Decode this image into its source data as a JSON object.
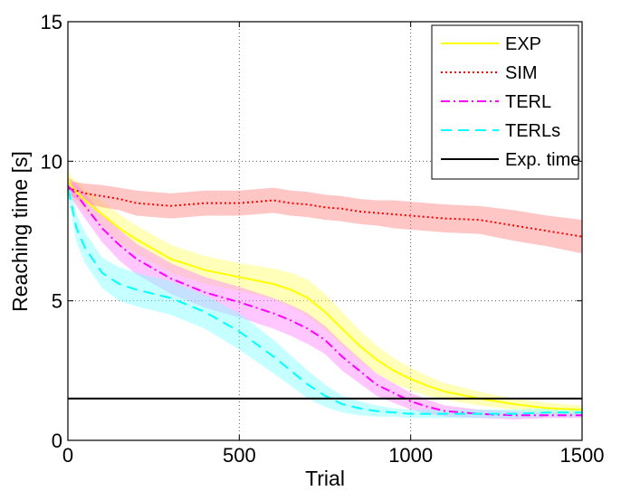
{
  "chart_data": {
    "type": "line",
    "xlabel": "Trial",
    "ylabel": "Reaching time [s]",
    "xlim": [
      0,
      1500
    ],
    "ylim": [
      0,
      15
    ],
    "xticks": [
      "0",
      "500",
      "1000",
      "1500"
    ],
    "yticks": [
      "0",
      "5",
      "10",
      "15"
    ],
    "grid": true,
    "legend_position": "top-right",
    "x": [
      0,
      10,
      25,
      50,
      100,
      150,
      200,
      300,
      400,
      500,
      600,
      650,
      700,
      750,
      800,
      850,
      900,
      950,
      1000,
      1050,
      1100,
      1200,
      1300,
      1400,
      1500
    ],
    "series": [
      {
        "name": "EXP",
        "color": "#ffff00",
        "band_color": "#ffff66",
        "dash": "solid",
        "values": [
          9.4,
          9.1,
          8.9,
          8.6,
          8.1,
          7.6,
          7.2,
          6.5,
          6.1,
          5.85,
          5.6,
          5.4,
          5.1,
          4.6,
          4.0,
          3.4,
          2.9,
          2.5,
          2.2,
          1.95,
          1.75,
          1.5,
          1.3,
          1.15,
          1.1
        ],
        "band": [
          0.3,
          0.35,
          0.4,
          0.4,
          0.45,
          0.5,
          0.5,
          0.5,
          0.5,
          0.5,
          0.55,
          0.6,
          0.65,
          0.65,
          0.6,
          0.55,
          0.5,
          0.45,
          0.4,
          0.35,
          0.3,
          0.25,
          0.2,
          0.2,
          0.15
        ]
      },
      {
        "name": "SIM",
        "color": "#ff0000",
        "band_color": "#ff8080",
        "dash": "dotted",
        "values": [
          9.0,
          9.0,
          8.95,
          8.85,
          8.75,
          8.65,
          8.5,
          8.4,
          8.5,
          8.5,
          8.6,
          8.5,
          8.45,
          8.35,
          8.3,
          8.2,
          8.15,
          8.1,
          8.05,
          8.0,
          7.95,
          7.9,
          7.7,
          7.5,
          7.3
        ],
        "band": [
          0.2,
          0.25,
          0.3,
          0.35,
          0.4,
          0.4,
          0.45,
          0.45,
          0.45,
          0.45,
          0.45,
          0.45,
          0.45,
          0.45,
          0.45,
          0.45,
          0.45,
          0.5,
          0.5,
          0.5,
          0.5,
          0.5,
          0.55,
          0.55,
          0.6
        ]
      },
      {
        "name": "TERL",
        "color": "#ff00ff",
        "band_color": "#ff80ff",
        "dash": "dashdot",
        "values": [
          9.1,
          9.0,
          8.8,
          8.4,
          7.6,
          7.0,
          6.5,
          5.8,
          5.3,
          4.95,
          4.55,
          4.3,
          4.0,
          3.6,
          3.0,
          2.5,
          2.0,
          1.7,
          1.4,
          1.2,
          1.05,
          0.95,
          0.9,
          0.9,
          0.9
        ],
        "band": [
          0.3,
          0.35,
          0.4,
          0.45,
          0.5,
          0.55,
          0.55,
          0.55,
          0.55,
          0.55,
          0.55,
          0.55,
          0.55,
          0.5,
          0.5,
          0.45,
          0.4,
          0.35,
          0.3,
          0.25,
          0.2,
          0.15,
          0.15,
          0.1,
          0.1
        ]
      },
      {
        "name": "TERLs",
        "color": "#00ffff",
        "band_color": "#80ffff",
        "dash": "dashed",
        "values": [
          9.0,
          8.5,
          7.6,
          6.9,
          6.0,
          5.6,
          5.4,
          5.1,
          4.6,
          3.9,
          3.0,
          2.5,
          2.0,
          1.6,
          1.3,
          1.15,
          1.05,
          1.0,
          0.95,
          0.95,
          0.95,
          0.95,
          0.95,
          1.0,
          1.0
        ],
        "band": [
          0.3,
          0.4,
          0.5,
          0.55,
          0.55,
          0.6,
          0.6,
          0.6,
          0.6,
          0.65,
          0.6,
          0.55,
          0.5,
          0.4,
          0.3,
          0.25,
          0.2,
          0.15,
          0.15,
          0.15,
          0.15,
          0.15,
          0.15,
          0.15,
          0.15
        ]
      },
      {
        "name": "Exp. time",
        "color": "#000000",
        "dash": "solid",
        "constant": 1.5
      }
    ]
  }
}
